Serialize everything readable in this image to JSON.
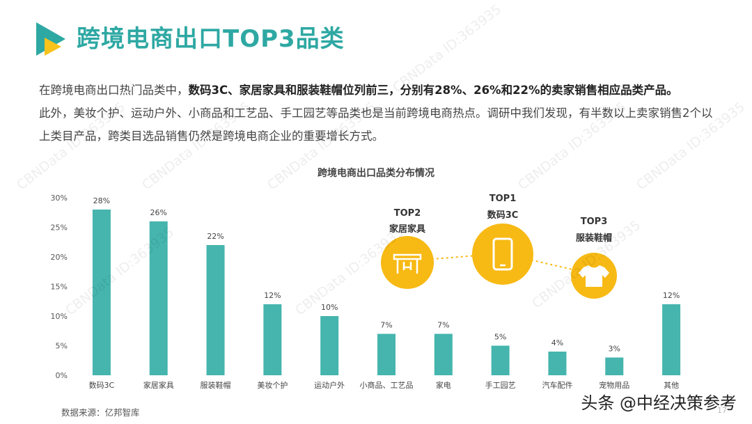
{
  "header": {
    "title": "跨境电商出口TOP3品类",
    "brand_color": "#2ea8a3"
  },
  "intro": {
    "part1": "在跨境电商出口热门品类中，",
    "bold": "数码3C、家居家具和服装鞋帽位列前三，分别有28%、26%和22%的卖家销售相应品类产品。",
    "part2": "此外，美妆个护、运动户外、小商品和工艺品、手工园艺等品类也是当前跨境电商热点。调研中我们发现，有半数以上卖家销售2个以上类目产品，跨类目选品销售仍然是跨境电商企业的重要增长方式。"
  },
  "chart_data": {
    "type": "bar",
    "title": "跨境电商出口品类分布情况",
    "categories": [
      "数码3C",
      "家居家具",
      "服装鞋帽",
      "美妆个护",
      "运动户外",
      "小商品、工艺品",
      "家电",
      "手工园艺",
      "汽车配件",
      "宠物用品",
      "其他"
    ],
    "values": [
      28,
      26,
      22,
      12,
      10,
      7,
      7,
      5,
      4,
      3,
      12
    ],
    "value_labels": [
      "28%",
      "26%",
      "22%",
      "12%",
      "10%",
      "7%",
      "7%",
      "5%",
      "4%",
      "3%",
      "12%"
    ],
    "ylim": [
      0,
      30
    ],
    "yticks": [
      "0%",
      "5%",
      "10%",
      "15%",
      "20%",
      "25%",
      "30%"
    ],
    "bar_color": "#45b5ae",
    "grid": false
  },
  "top3": [
    {
      "rank": "TOP1",
      "name": "数码3C",
      "icon": "smartphone-icon"
    },
    {
      "rank": "TOP2",
      "name": "家居家具",
      "icon": "table-icon"
    },
    {
      "rank": "TOP3",
      "name": "服装鞋帽",
      "icon": "tshirt-icon"
    }
  ],
  "top3_color": "#f7b914",
  "footer": {
    "source": "数据来源：亿邦智库",
    "credit": "头条 @中经决策参考",
    "page": "17"
  },
  "watermark": "CBNData ID:363935"
}
